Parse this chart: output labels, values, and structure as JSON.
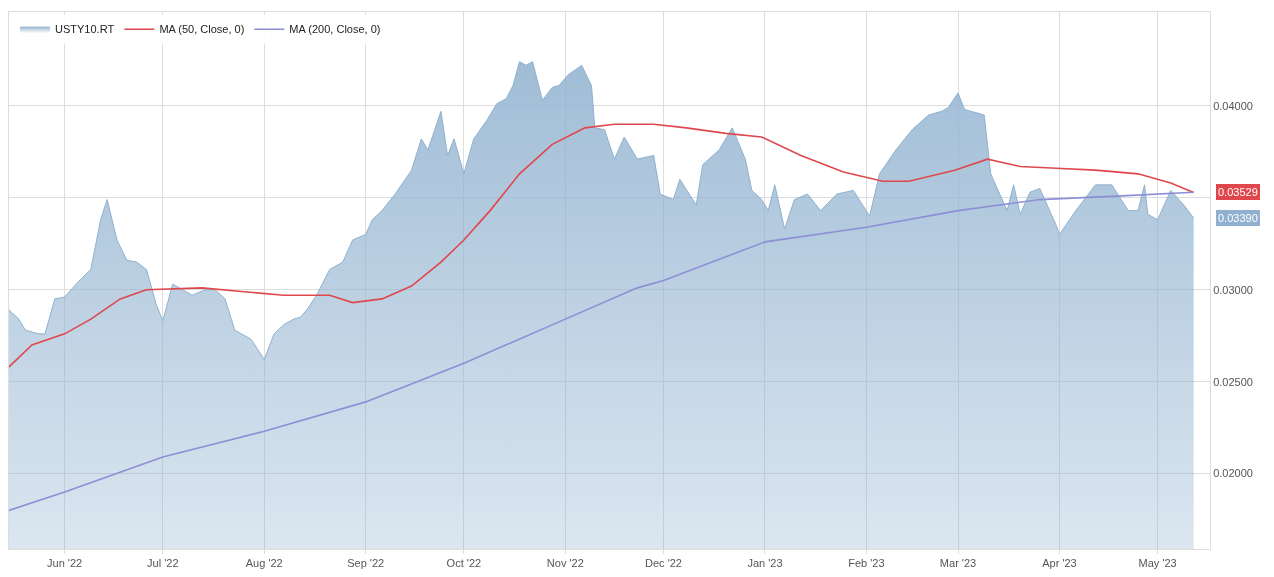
{
  "chart_data": {
    "type": "area",
    "xlim": [
      "2022-05-15",
      "2023-05-17"
    ],
    "xticks": [
      {
        "value": "2022-06-01",
        "label": "Jun '22"
      },
      {
        "value": "2022-07-01",
        "label": "Jul '22"
      },
      {
        "value": "2022-08-01",
        "label": "Aug '22"
      },
      {
        "value": "2022-09-01",
        "label": "Sep '22"
      },
      {
        "value": "2022-10-01",
        "label": "Oct '22"
      },
      {
        "value": "2022-11-01",
        "label": "Nov '22"
      },
      {
        "value": "2022-12-01",
        "label": "Dec '22"
      },
      {
        "value": "2023-01-01",
        "label": "Jan '23"
      },
      {
        "value": "2023-02-01",
        "label": "Feb '23"
      },
      {
        "value": "2023-03-01",
        "label": "Mar '23"
      },
      {
        "value": "2023-04-01",
        "label": "Apr '23"
      },
      {
        "value": "2023-05-01",
        "label": "May '23"
      }
    ],
    "ylim": [
      0.0159,
      0.0451
    ],
    "yticks": [
      {
        "value": 0.02,
        "label": "0.02000"
      },
      {
        "value": 0.025,
        "label": "0.02500"
      },
      {
        "value": 0.03,
        "label": "0.03000"
      },
      {
        "value": 0.035,
        "label": null
      },
      {
        "value": 0.04,
        "label": "0.04000"
      }
    ],
    "grid": true,
    "legend": "top left",
    "series": [
      {
        "name": "USTY10.RT",
        "color": "#8fb1cf",
        "x": [
          "2022-05-15",
          "2022-05-18",
          "2022-05-20",
          "2022-05-24",
          "2022-05-26",
          "2022-05-29",
          "2022-06-01",
          "2022-06-05",
          "2022-06-09",
          "2022-06-12",
          "2022-06-14",
          "2022-06-17",
          "2022-06-20",
          "2022-06-23",
          "2022-06-26",
          "2022-06-29",
          "2022-07-01",
          "2022-07-04",
          "2022-07-07",
          "2022-07-10",
          "2022-07-14",
          "2022-07-17",
          "2022-07-20",
          "2022-07-23",
          "2022-07-28",
          "2022-08-01",
          "2022-08-04",
          "2022-08-07",
          "2022-08-10",
          "2022-08-12",
          "2022-08-14",
          "2022-08-17",
          "2022-08-21",
          "2022-08-25",
          "2022-08-28",
          "2022-09-01",
          "2022-09-03",
          "2022-09-06",
          "2022-09-10",
          "2022-09-15",
          "2022-09-18",
          "2022-09-20",
          "2022-09-24",
          "2022-09-26",
          "2022-09-28",
          "2022-10-01",
          "2022-10-04",
          "2022-10-08",
          "2022-10-11",
          "2022-10-14",
          "2022-10-16",
          "2022-10-18",
          "2022-10-20",
          "2022-10-22",
          "2022-10-25",
          "2022-10-28",
          "2022-10-30",
          "2022-11-02",
          "2022-11-06",
          "2022-11-09",
          "2022-11-10",
          "2022-11-13",
          "2022-11-16",
          "2022-11-19",
          "2022-11-23",
          "2022-11-28",
          "2022-11-30",
          "2022-12-04",
          "2022-12-06",
          "2022-12-11",
          "2022-12-13",
          "2022-12-18",
          "2022-12-22",
          "2022-12-26",
          "2022-12-28",
          "2022-12-31",
          "2023-01-02",
          "2023-01-04",
          "2023-01-07",
          "2023-01-10",
          "2023-01-14",
          "2023-01-18",
          "2023-01-23",
          "2023-01-28",
          "2023-02-02",
          "2023-02-05",
          "2023-02-10",
          "2023-02-15",
          "2023-02-20",
          "2023-02-24",
          "2023-02-26",
          "2023-03-01",
          "2023-03-03",
          "2023-03-09",
          "2023-03-11",
          "2023-03-16",
          "2023-03-18",
          "2023-03-20",
          "2023-03-23",
          "2023-03-26",
          "2023-03-31",
          "2023-04-01",
          "2023-04-06",
          "2023-04-12",
          "2023-04-17",
          "2023-04-22",
          "2023-04-25",
          "2023-04-27",
          "2023-04-28",
          "2023-05-01",
          "2023-05-05",
          "2023-05-09",
          "2023-05-12"
        ],
        "values": [
          0.0289,
          0.0284,
          0.0278,
          0.0276,
          0.0276,
          0.0295,
          0.0296,
          0.0304,
          0.0311,
          0.0338,
          0.0349,
          0.0327,
          0.0316,
          0.0315,
          0.0311,
          0.0292,
          0.0283,
          0.0303,
          0.03,
          0.0297,
          0.03,
          0.03,
          0.0295,
          0.0278,
          0.0273,
          0.0262,
          0.0276,
          0.0281,
          0.0284,
          0.0285,
          0.0289,
          0.0297,
          0.0311,
          0.0315,
          0.0327,
          0.033,
          0.0338,
          0.0343,
          0.0352,
          0.0365,
          0.0382,
          0.0376,
          0.0397,
          0.0373,
          0.0382,
          0.0363,
          0.0382,
          0.0392,
          0.0401,
          0.0404,
          0.0411,
          0.0424,
          0.0422,
          0.0424,
          0.0403,
          0.041,
          0.0411,
          0.0417,
          0.0422,
          0.0411,
          0.0388,
          0.0387,
          0.0371,
          0.0383,
          0.0371,
          0.0373,
          0.0352,
          0.0349,
          0.036,
          0.0346,
          0.0368,
          0.0376,
          0.0388,
          0.0371,
          0.0354,
          0.0349,
          0.0343,
          0.0357,
          0.0333,
          0.0349,
          0.0352,
          0.0343,
          0.0352,
          0.0354,
          0.034,
          0.0363,
          0.0376,
          0.0387,
          0.0395,
          0.0397,
          0.0399,
          0.0407,
          0.0398,
          0.0395,
          0.0363,
          0.0343,
          0.0357,
          0.0341,
          0.0353,
          0.0355,
          0.0335,
          0.033,
          0.0343,
          0.0357,
          0.0357,
          0.0343,
          0.0343,
          0.0357,
          0.0341,
          0.0338,
          0.0354,
          0.0346,
          0.0339
        ]
      },
      {
        "name": "MA (50, Close, 0)",
        "type": "line",
        "color": "#e0474c",
        "x": [
          "2022-05-15",
          "2022-05-22",
          "2022-06-01",
          "2022-06-09",
          "2022-06-18",
          "2022-06-26",
          "2022-07-13",
          "2022-07-25",
          "2022-08-07",
          "2022-08-21",
          "2022-08-28",
          "2022-09-06",
          "2022-09-15",
          "2022-09-24",
          "2022-10-01",
          "2022-10-09",
          "2022-10-18",
          "2022-10-28",
          "2022-11-07",
          "2022-11-16",
          "2022-11-28",
          "2022-12-08",
          "2022-12-20",
          "2022-12-31",
          "2023-01-12",
          "2023-01-25",
          "2023-02-06",
          "2023-02-14",
          "2023-02-28",
          "2023-03-10",
          "2023-03-20",
          "2023-03-31",
          "2023-04-12",
          "2023-04-25",
          "2023-05-05",
          "2023-05-12"
        ],
        "values": [
          0.0258,
          0.027,
          0.0276,
          0.0284,
          0.0295,
          0.03,
          0.0301,
          0.0299,
          0.0297,
          0.0297,
          0.0293,
          0.0295,
          0.0302,
          0.0315,
          0.0327,
          0.0343,
          0.0363,
          0.0379,
          0.0388,
          0.039,
          0.039,
          0.0388,
          0.0385,
          0.0383,
          0.0373,
          0.0364,
          0.0359,
          0.0359,
          0.0365,
          0.0371,
          0.0367,
          0.0366,
          0.0365,
          0.0363,
          0.0358,
          0.03529
        ]
      },
      {
        "name": "MA (200, Close, 0)",
        "type": "line",
        "color": "#8c8fd6",
        "x": [
          "2022-05-15",
          "2022-06-01",
          "2022-07-01",
          "2022-08-01",
          "2022-09-01",
          "2022-10-01",
          "2022-11-01",
          "2022-11-23",
          "2022-12-01",
          "2023-01-01",
          "2023-02-01",
          "2023-03-01",
          "2023-03-26",
          "2023-04-20",
          "2023-05-12"
        ],
        "values": [
          0.018,
          0.019,
          0.0209,
          0.0223,
          0.0239,
          0.026,
          0.0284,
          0.0301,
          0.0305,
          0.0326,
          0.0334,
          0.0343,
          0.0349,
          0.0351,
          0.0353
        ]
      }
    ],
    "annotations": [
      {
        "text": "0.03529",
        "x": "2023-05-12",
        "y": 0.03529
      },
      {
        "text": "0.03390",
        "x": "2023-05-12",
        "y": 0.0339
      }
    ]
  }
}
